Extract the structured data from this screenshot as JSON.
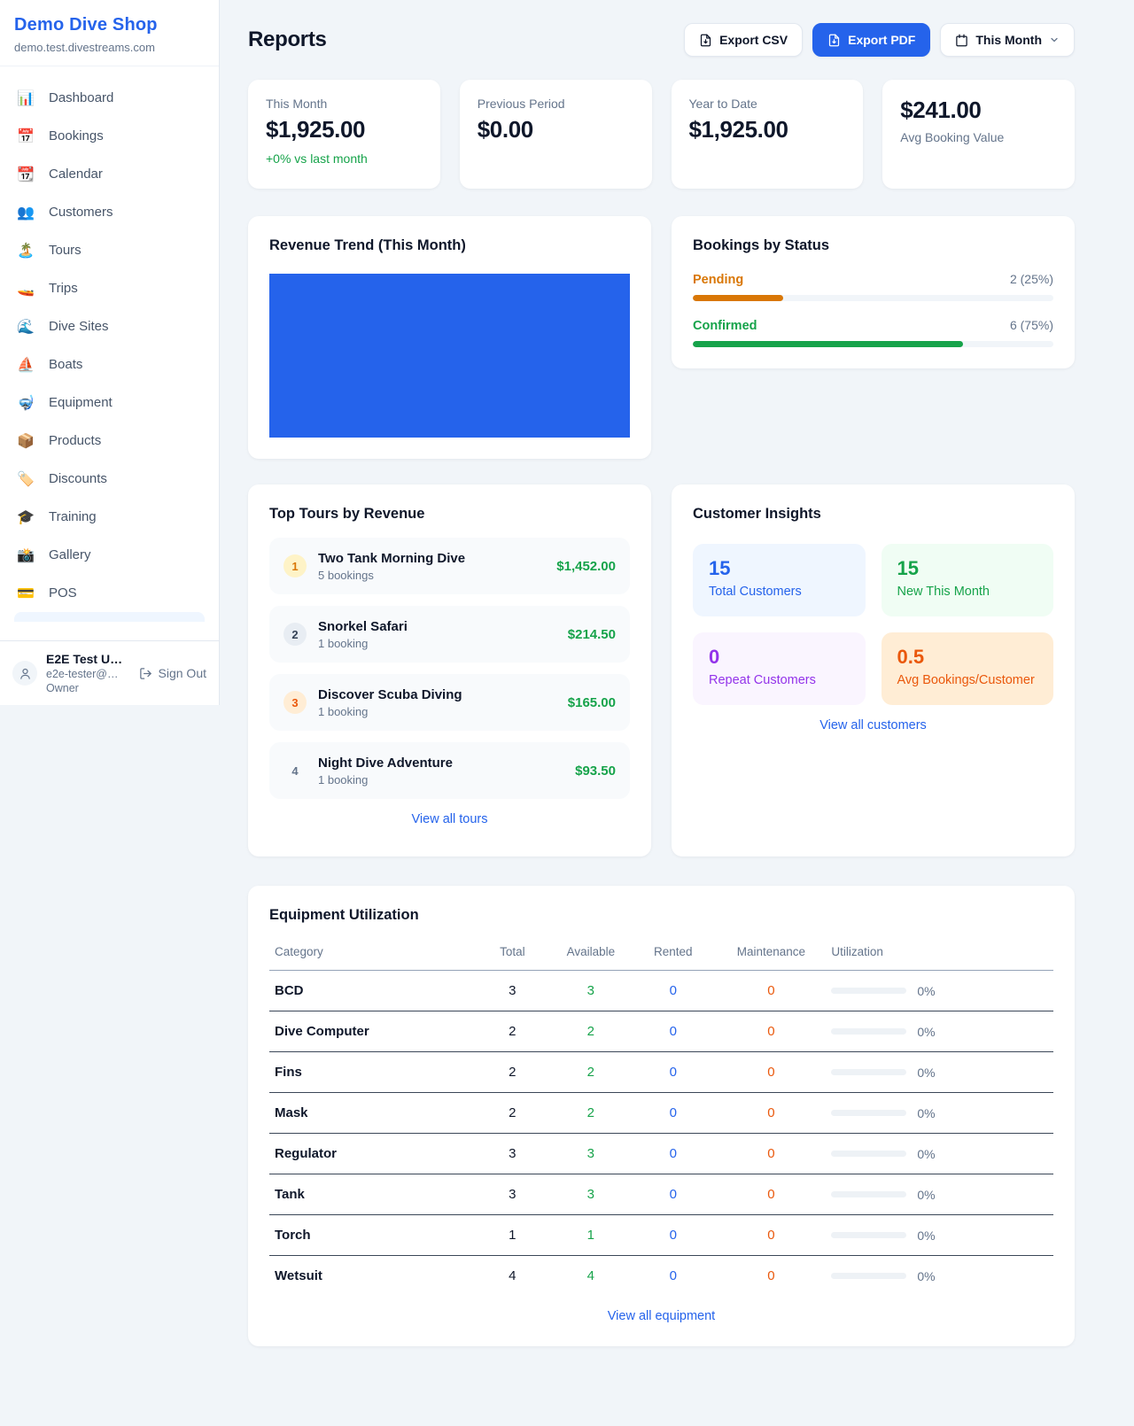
{
  "colors": {
    "accent": "#2563eb",
    "link": "#2563eb",
    "green": "#16a34a",
    "orange": "#d97706",
    "deep-orange": "#ea580c",
    "purple": "#9333ea",
    "chart-blue": "#2563eb"
  },
  "brand": {
    "name": "Demo Dive Shop",
    "domain": "demo.test.divestreams.com"
  },
  "sidebar": {
    "items": [
      {
        "label": "Dashboard",
        "icon": "📊"
      },
      {
        "label": "Bookings",
        "icon": "📅"
      },
      {
        "label": "Calendar",
        "icon": "📆"
      },
      {
        "label": "Customers",
        "icon": "👥"
      },
      {
        "label": "Tours",
        "icon": "🏝️"
      },
      {
        "label": "Trips",
        "icon": "🚤"
      },
      {
        "label": "Dive Sites",
        "icon": "🌊"
      },
      {
        "label": "Boats",
        "icon": "⛵"
      },
      {
        "label": "Equipment",
        "icon": "🤿"
      },
      {
        "label": "Products",
        "icon": "📦"
      },
      {
        "label": "Discounts",
        "icon": "🏷️"
      },
      {
        "label": "Training",
        "icon": "🎓"
      },
      {
        "label": "Gallery",
        "icon": "📸"
      },
      {
        "label": "POS",
        "icon": "💳"
      }
    ],
    "user": {
      "name": "E2E Test U…",
      "email": "e2e-tester@…",
      "role": "Owner",
      "sign_out": "Sign Out"
    }
  },
  "header": {
    "title": "Reports",
    "export_csv": "Export CSV",
    "export_pdf": "Export PDF",
    "period": "This Month"
  },
  "stats": {
    "this_month": {
      "label": "This Month",
      "value": "$1,925.00",
      "delta": "+0% vs last month"
    },
    "previous_period": {
      "label": "Previous Period",
      "value": "$0.00"
    },
    "year_to_date": {
      "label": "Year to Date",
      "value": "$1,925.00"
    },
    "avg_booking": {
      "value": "$241.00",
      "label": "Avg Booking Value"
    }
  },
  "revenue_trend": {
    "title": "Revenue Trend (This Month)"
  },
  "bookings_by_status": {
    "title": "Bookings by Status",
    "rows": [
      {
        "label": "Pending",
        "count": "2 (25%)",
        "pct": 25,
        "color": "#d97706"
      },
      {
        "label": "Confirmed",
        "count": "6 (75%)",
        "pct": 75,
        "color": "#16a34a"
      }
    ]
  },
  "top_tours": {
    "title": "Top Tours by Revenue",
    "items": [
      {
        "rank": "1",
        "name": "Two Tank Morning Dive",
        "bookings": "5 bookings",
        "revenue": "$1,452.00",
        "badge_bg": "#fef3c7",
        "badge_fg": "#d97706"
      },
      {
        "rank": "2",
        "name": "Snorkel Safari",
        "bookings": "1 booking",
        "revenue": "$214.50",
        "badge_bg": "#e8edf3",
        "badge_fg": "#334155"
      },
      {
        "rank": "3",
        "name": "Discover Scuba Diving",
        "bookings": "1 booking",
        "revenue": "$165.00",
        "badge_bg": "#ffedd5",
        "badge_fg": "#ea580c"
      },
      {
        "rank": "4",
        "name": "Night Dive Adventure",
        "bookings": "1 booking",
        "revenue": "$93.50",
        "badge_bg": "transparent",
        "badge_fg": "#64748b"
      }
    ],
    "view_all": "View all tours"
  },
  "customer_insights": {
    "title": "Customer Insights",
    "tiles": [
      {
        "value": "15",
        "label": "Total Customers",
        "bg": "#eff6ff",
        "fg": "#2563eb"
      },
      {
        "value": "15",
        "label": "New This Month",
        "bg": "#f0fdf4",
        "fg": "#16a34a"
      },
      {
        "value": "0",
        "label": "Repeat Customers",
        "bg": "#faf5ff",
        "fg": "#9333ea"
      },
      {
        "value": "0.5",
        "label": "Avg Bookings/Customer",
        "bg": "#ffedd5",
        "fg": "#ea580c"
      }
    ],
    "view_all": "View all customers"
  },
  "equipment": {
    "title": "Equipment Utilization",
    "columns": [
      "Category",
      "Total",
      "Available",
      "Rented",
      "Maintenance",
      "Utilization"
    ],
    "rows": [
      {
        "category": "BCD",
        "total": "3",
        "available": "3",
        "rented": "0",
        "maintenance": "0",
        "utilization": "0%",
        "pct": 0
      },
      {
        "category": "Dive Computer",
        "total": "2",
        "available": "2",
        "rented": "0",
        "maintenance": "0",
        "utilization": "0%",
        "pct": 0
      },
      {
        "category": "Fins",
        "total": "2",
        "available": "2",
        "rented": "0",
        "maintenance": "0",
        "utilization": "0%",
        "pct": 0
      },
      {
        "category": "Mask",
        "total": "2",
        "available": "2",
        "rented": "0",
        "maintenance": "0",
        "utilization": "0%",
        "pct": 0
      },
      {
        "category": "Regulator",
        "total": "3",
        "available": "3",
        "rented": "0",
        "maintenance": "0",
        "utilization": "0%",
        "pct": 0
      },
      {
        "category": "Tank",
        "total": "3",
        "available": "3",
        "rented": "0",
        "maintenance": "0",
        "utilization": "0%",
        "pct": 0
      },
      {
        "category": "Torch",
        "total": "1",
        "available": "1",
        "rented": "0",
        "maintenance": "0",
        "utilization": "0%",
        "pct": 0
      },
      {
        "category": "Wetsuit",
        "total": "4",
        "available": "4",
        "rented": "0",
        "maintenance": "0",
        "utilization": "0%",
        "pct": 0
      }
    ],
    "view_all": "View all equipment"
  }
}
